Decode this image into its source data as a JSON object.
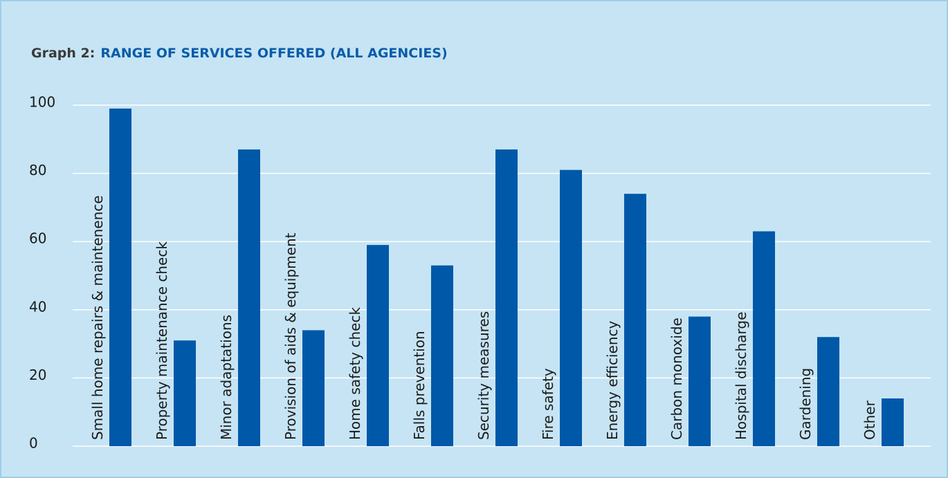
{
  "chart_data": {
    "type": "bar",
    "title_label": "Graph 2:",
    "title": "RANGE OF SERVICES OFFERED (ALL AGENCIES)",
    "categories": [
      "Small home repairs & maintenence",
      "Property maintenance check",
      "Minor adaptations",
      "Provision of aids & equipment",
      "Home safety check",
      "Falls prevention",
      "Security measures",
      "Fire safety",
      "Energy efficiency",
      "Carbon monoxide",
      "Hospital discharge",
      "Gardening",
      "Other"
    ],
    "values": [
      99,
      31,
      87,
      34,
      59,
      53,
      87,
      81,
      74,
      38,
      63,
      32,
      14
    ],
    "color": "#0058a8",
    "ylim": [
      0,
      100
    ],
    "yticks": [
      0,
      20,
      40,
      60,
      80,
      100
    ],
    "grid": true
  }
}
